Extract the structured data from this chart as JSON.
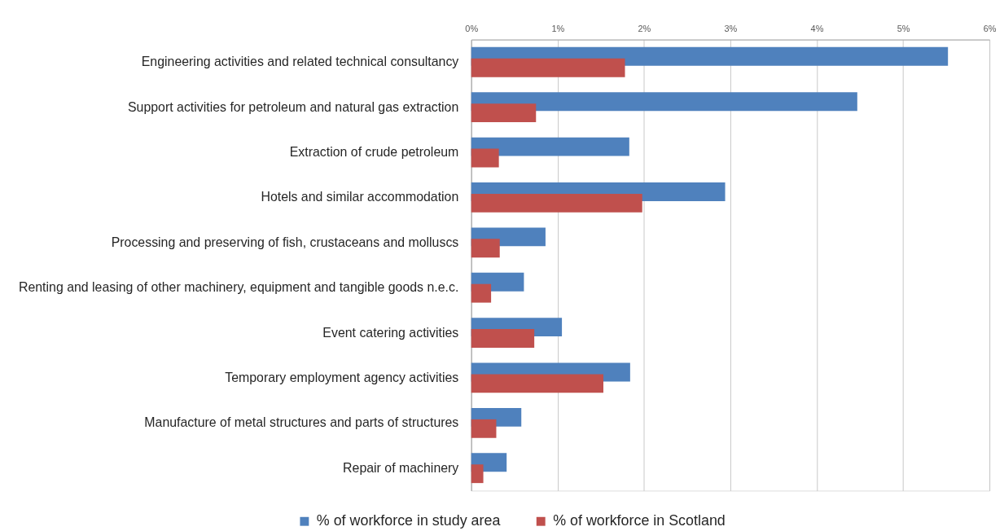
{
  "chart_data": {
    "type": "bar",
    "orientation": "horizontal",
    "categories": [
      "Engineering activities and related technical consultancy",
      "Support activities for petroleum and natural gas extraction",
      "Extraction of crude petroleum",
      "Hotels and similar accommodation",
      "Processing and preserving of fish, crustaceans and molluscs",
      "Renting and leasing of other machinery, equipment and tangible goods n.e.c.",
      "Event catering activities",
      "Temporary employment agency activities",
      "Manufacture of metal structures and parts of structures",
      "Repair of machinery"
    ],
    "series": [
      {
        "name": "% of workforce in study area",
        "color": "#4f81bd",
        "values": [
          5.52,
          4.47,
          1.83,
          2.94,
          0.86,
          0.61,
          1.05,
          1.84,
          0.58,
          0.41
        ]
      },
      {
        "name": "% of workforce in Scotland",
        "color": "#c0504d",
        "values": [
          1.78,
          0.75,
          0.32,
          1.98,
          0.33,
          0.23,
          0.73,
          1.53,
          0.29,
          0.14
        ]
      }
    ],
    "xlim": [
      0,
      6
    ],
    "xticks": [
      {
        "value": 0,
        "label": "0%"
      },
      {
        "value": 1,
        "label": "1%"
      },
      {
        "value": 2,
        "label": "2%"
      },
      {
        "value": 3,
        "label": "3%"
      },
      {
        "value": 4,
        "label": "4%"
      },
      {
        "value": 5,
        "label": "5%"
      },
      {
        "value": 6,
        "label": "6%"
      }
    ],
    "grid": "x",
    "legend": "bottom"
  }
}
